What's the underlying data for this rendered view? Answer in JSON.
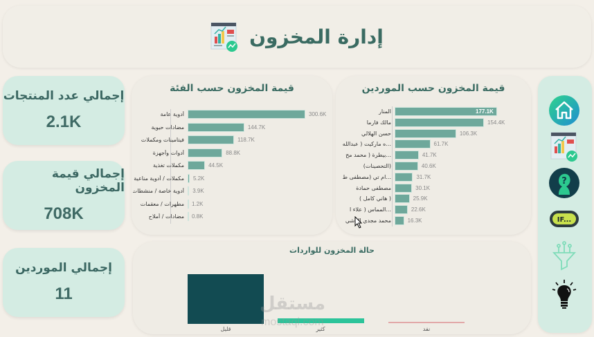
{
  "header": {
    "title": "إدارة المخزون",
    "icon": "dashboard-report-icon"
  },
  "kpis": [
    {
      "label": "إجمالي عدد المنتجات",
      "value": "2.1K"
    },
    {
      "label": "إجمالي قيمة المخزون",
      "value": "708K"
    },
    {
      "label": "إجمالي الموردين",
      "value": "11"
    }
  ],
  "category_chart": {
    "title": "قيمة المخزون حسب الفئة"
  },
  "supplier_chart": {
    "title": "قيمة المخزون حسب الموردين"
  },
  "status_chart": {
    "title": "حالة المخزون للواردات"
  },
  "sidebar": {
    "items": [
      {
        "name": "home",
        "icon": "home-icon"
      },
      {
        "name": "inventory",
        "icon": "dashboard-report-icon"
      },
      {
        "name": "help",
        "icon": "question-head-icon"
      },
      {
        "name": "if",
        "icon": "if-icon",
        "label": "IF..."
      },
      {
        "name": "filter",
        "icon": "funnel-icon"
      },
      {
        "name": "ideas",
        "icon": "lightbulb-icon"
      }
    ]
  },
  "watermark": {
    "text": "مستقل",
    "url_text": "mostaql.com"
  },
  "colors": {
    "background": "#f3efe8",
    "card": "#efece5",
    "kpi": "#d4ece3",
    "bar": "#6ea89b",
    "dark_teal": "#124b52",
    "mint": "#2cc49a",
    "pink": "#e2a8a8",
    "title": "#3a6b62"
  },
  "chart_data": [
    {
      "type": "bar",
      "orientation": "horizontal",
      "title": "قيمة المخزون حسب الفئة",
      "categories": [
        "أدوية عامة",
        "مضادات حيوية",
        "فيتامينات ومكملات",
        "أدوات وأجهزة",
        "مكملات تغذية",
        "مكملات / أدوية مناعية",
        "أدوية خاصة / منشطات",
        "مطهرات / معقمات",
        "مضادات / أملاح"
      ],
      "values": [
        300.6,
        144.7,
        118.7,
        88.8,
        44.5,
        5.2,
        3.9,
        1.2,
        0.8
      ],
      "value_labels": [
        "300.6K",
        "144.7K",
        "118.7K",
        "88.8K",
        "44.5K",
        "5.2K",
        "3.9K",
        "1.2K",
        "0.8K"
      ],
      "unit": "K"
    },
    {
      "type": "bar",
      "orientation": "horizontal",
      "title": "قيمة المخزون حسب الموردين",
      "categories": [
        "المنار",
        "مالك فارما",
        "حسن الهلالي",
        "...ه ماركيت ( عبدالله",
        "...بيطرة ( محمد مح",
        "(التحصينات)",
        "...ام تي (مصطفى ط",
        "مصطفى حمادة",
        "( هاني كامل )",
        "...المماس ( علاء ا",
        "محمد مجدي الباشي"
      ],
      "values": [
        177.1,
        154.4,
        106.3,
        61.7,
        41.7,
        40.6,
        31.7,
        30.1,
        25.9,
        22.6,
        16.3
      ],
      "value_labels": [
        "177.1K",
        "154.4K",
        "106.3K",
        "61.7K",
        "41.7K",
        "40.6K",
        "31.7K",
        "30.1K",
        "25.9K",
        "22.6K",
        "16.3K"
      ],
      "unit": "K"
    },
    {
      "type": "bar",
      "title": "حالة المخزون للواردات",
      "categories": [
        "قليل",
        "كثير",
        "نفد"
      ],
      "values": [
        100,
        8,
        1
      ],
      "colors": [
        "#124b52",
        "#2cc49a",
        "#e2a8a8"
      ]
    }
  ]
}
